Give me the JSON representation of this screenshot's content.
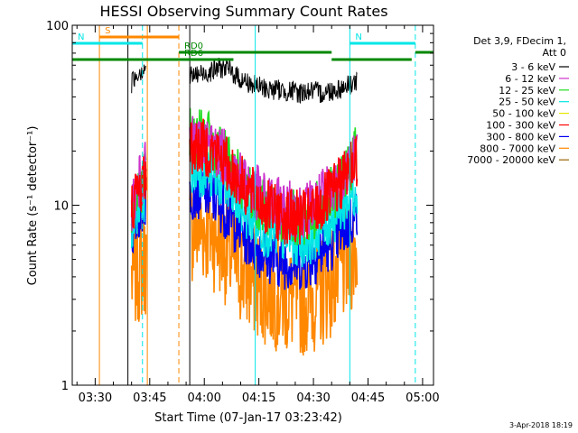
{
  "chart_data": {
    "type": "line",
    "title": "HESSI Observing Summary Count Rates",
    "xlabel": "Start Time (07-Jan-17 03:23:42)",
    "ylabel": "Count Rate (s⁻¹ detector⁻¹)",
    "x_scale": "time",
    "x_range": [
      "03:23:42",
      "05:03:00"
    ],
    "x_ticks": [
      "03:30",
      "03:45",
      "04:00",
      "04:15",
      "04:30",
      "04:45",
      "05:00"
    ],
    "y_scale": "log",
    "ylim": [
      1,
      100
    ],
    "y_ticks": [
      "1",
      "10",
      "100"
    ],
    "grid": false,
    "legend_position": "right",
    "legend_header": [
      "Det 3,9, FDecim 1,",
      "Att 0"
    ],
    "series": [
      {
        "name": "3 - 6 keV",
        "color": "#000000",
        "segments": [
          {
            "x": [
              "03:40:00",
              "03:41:00",
              "03:42:00",
              "03:43:00",
              "03:44:00"
            ],
            "y": [
              48,
              52,
              55,
              57,
              60
            ]
          },
          {
            "x": [
              "03:56:00",
              "03:58:00",
              "04:00:00",
              "04:02:00",
              "04:04:00",
              "04:06:00",
              "04:08:00",
              "04:10:00",
              "04:12:00",
              "04:14:00",
              "04:16:00",
              "04:18:00",
              "04:20:00",
              "04:22:00",
              "04:24:00",
              "04:26:00",
              "04:28:00",
              "04:30:00",
              "04:32:00",
              "04:34:00",
              "04:36:00",
              "04:38:00",
              "04:40:00",
              "04:42:00"
            ],
            "y": [
              52,
              53,
              54,
              56,
              58,
              58,
              54,
              50,
              48,
              46,
              45,
              44,
              44,
              43,
              43,
              42,
              43,
              43,
              42,
              43,
              44,
              45,
              47,
              49
            ]
          }
        ]
      },
      {
        "name": "6 - 12 keV",
        "color": "#cc33cc",
        "segments": [
          {
            "x": [
              "03:40:00",
              "03:42:00",
              "03:44:00"
            ],
            "y": [
              10,
              13,
              16
            ]
          },
          {
            "x": [
              "03:56:00",
              "04:00:00",
              "04:04:00",
              "04:08:00",
              "04:12:00",
              "04:16:00",
              "04:20:00",
              "04:24:00",
              "04:28:00",
              "04:32:00",
              "04:36:00",
              "04:40:00",
              "04:42:00"
            ],
            "y": [
              22,
              22,
              20,
              16,
              13,
              11,
              10,
              9.5,
              9.5,
              11,
              13,
              17,
              19
            ]
          }
        ]
      },
      {
        "name": "12 - 25 keV",
        "color": "#22dd22",
        "segments": [
          {
            "x": [
              "03:40:00",
              "03:42:00",
              "03:44:00"
            ],
            "y": [
              9,
              12,
              15
            ]
          },
          {
            "x": [
              "03:56:00",
              "04:00:00",
              "04:04:00",
              "04:08:00",
              "04:12:00",
              "04:16:00",
              "04:20:00",
              "04:24:00",
              "04:28:00",
              "04:32:00",
              "04:36:00",
              "04:40:00",
              "04:42:00"
            ],
            "y": [
              24,
              24,
              20,
              16,
              12,
              10,
              9,
              8.5,
              8.5,
              10,
              12,
              16,
              20
            ]
          }
        ]
      },
      {
        "name": "25 - 50 keV",
        "color": "#00e6e6",
        "segments": [
          {
            "x": [
              "03:40:00",
              "03:42:00",
              "03:44:00"
            ],
            "y": [
              8,
              10,
              12
            ]
          },
          {
            "x": [
              "03:56:00",
              "04:00:00",
              "04:04:00",
              "04:08:00",
              "04:12:00",
              "04:16:00",
              "04:20:00",
              "04:24:00",
              "04:28:00",
              "04:32:00",
              "04:36:00",
              "04:40:00",
              "04:42:00"
            ],
            "y": [
              16,
              16,
              14,
              11,
              9,
              7.5,
              7,
              6.5,
              6.5,
              7.5,
              9,
              11,
              13
            ]
          }
        ]
      },
      {
        "name": "50 - 100 keV",
        "color": "#e6e600",
        "segments": [
          {
            "x": [
              "03:40:00",
              "03:44:00"
            ],
            "y": [
              7,
              9
            ]
          },
          {
            "x": [
              "03:56:00",
              "04:10:00",
              "04:24:00",
              "04:36:00",
              "04:42:00"
            ],
            "y": [
              11,
              9,
              6.5,
              7.5,
              10
            ]
          }
        ]
      },
      {
        "name": "100 - 300 keV",
        "color": "#ff0000",
        "segments": [
          {
            "x": [
              "03:40:00",
              "03:42:00",
              "03:44:00"
            ],
            "y": [
              10,
              12,
              15
            ]
          },
          {
            "x": [
              "03:56:00",
              "04:00:00",
              "04:04:00",
              "04:08:00",
              "04:12:00",
              "04:16:00",
              "04:20:00",
              "04:24:00",
              "04:28:00",
              "04:32:00",
              "04:36:00",
              "04:40:00",
              "04:42:00"
            ],
            "y": [
              21,
              21,
              19,
              15,
              12,
              10,
              9,
              8.5,
              8.5,
              10,
              12,
              16,
              18
            ]
          }
        ]
      },
      {
        "name": "300 - 800 keV",
        "color": "#0000ee",
        "segments": [
          {
            "x": [
              "03:40:00",
              "03:42:00",
              "03:44:00"
            ],
            "y": [
              7,
              9,
              11
            ]
          },
          {
            "x": [
              "03:56:00",
              "04:00:00",
              "04:04:00",
              "04:08:00",
              "04:12:00",
              "04:16:00",
              "04:20:00",
              "04:24:00",
              "04:28:00",
              "04:32:00",
              "04:36:00",
              "04:40:00",
              "04:42:00"
            ],
            "y": [
              12,
              12,
              10.5,
              8,
              6.5,
              5.5,
              5,
              4.8,
              4.8,
              5.5,
              6.5,
              8,
              9.5
            ]
          }
        ]
      },
      {
        "name": "800 - 7000 keV",
        "color": "#ff8800",
        "segments": [
          {
            "x": [
              "03:40:00",
              "03:42:00",
              "03:44:00"
            ],
            "y": [
              4,
              4.5,
              5
            ]
          },
          {
            "x": [
              "03:56:00",
              "04:00:00",
              "04:04:00",
              "04:08:00",
              "04:12:00",
              "04:16:00",
              "04:20:00",
              "04:24:00",
              "04:28:00",
              "04:32:00",
              "04:36:00",
              "04:40:00",
              "04:42:00"
            ],
            "y": [
              7.5,
              7.5,
              6.5,
              5,
              4,
              3.5,
              3.2,
              3,
              3,
              3.3,
              4,
              5,
              6
            ]
          }
        ]
      },
      {
        "name": "7000 - 20000 keV",
        "color": "#996600",
        "segments": []
      }
    ],
    "annotations": {
      "vlines": [
        {
          "x": "03:23:42",
          "color": "#00e6e6",
          "style": "solid"
        },
        {
          "x": "03:31:10",
          "color": "#ff8800",
          "style": "solid"
        },
        {
          "x": "03:39:00",
          "color": "#000000",
          "style": "solid"
        },
        {
          "x": "03:43:00",
          "color": "#00e6e6",
          "style": "dashed"
        },
        {
          "x": "03:44:20",
          "color": "#ff8800",
          "style": "solid"
        },
        {
          "x": "03:53:00",
          "color": "#ff8800",
          "style": "dashed"
        },
        {
          "x": "03:56:00",
          "color": "#000000",
          "style": "solid"
        },
        {
          "x": "04:14:00",
          "color": "#00e6e6",
          "style": "solid"
        },
        {
          "x": "04:40:00",
          "color": "#00e6e6",
          "style": "solid"
        },
        {
          "x": "04:58:00",
          "color": "#00e6e6",
          "style": "dashed"
        }
      ],
      "bars": [
        {
          "label": "S",
          "color": "#ff8800",
          "level": 1,
          "x_start": "03:31:10",
          "x_end": "03:53:00"
        },
        {
          "label": "N",
          "color": "#00e6e6",
          "level": 2,
          "x_start": "03:23:42",
          "x_end": "03:43:00"
        },
        {
          "label": "N",
          "color": "#00e6e6",
          "level": 2,
          "x_start": "04:40:00",
          "x_end": "04:58:00"
        },
        {
          "label": "RD0",
          "color": "#008800",
          "level": 3,
          "x_start": "03:53:00",
          "x_end": "04:08:00"
        },
        {
          "label": "",
          "color": "#008800",
          "level": 3,
          "x_start": "04:08:00",
          "x_end": "04:35:00"
        },
        {
          "label": "",
          "color": "#008800",
          "level": 3,
          "x_start": "04:58:00",
          "x_end": "05:03:00"
        },
        {
          "label": "",
          "color": "#008800",
          "level": 4,
          "x_start": "03:23:42",
          "x_end": "03:53:00"
        },
        {
          "label": "RD6",
          "color": "#008800",
          "level": 4,
          "x_start": "03:53:00",
          "x_end": "04:08:00"
        },
        {
          "label": "",
          "color": "#008800",
          "level": 4,
          "x_start": "04:35:00",
          "x_end": "04:57:00"
        }
      ]
    },
    "footer_stamp": "3-Apr-2018 18:19"
  }
}
